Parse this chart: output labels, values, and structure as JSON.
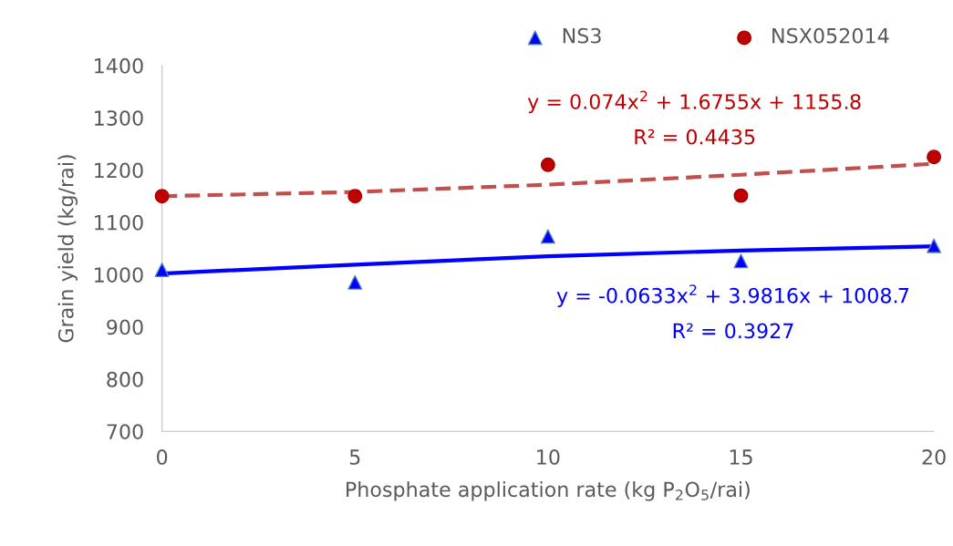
{
  "chart_data": {
    "type": "scatter",
    "xlabel": "Phosphate application rate (kg P$_{2}$O$_{5}$/rai)",
    "ylabel": "Grain yield (kg/rai)",
    "x": [
      0,
      5,
      10,
      15,
      20
    ],
    "series": [
      {
        "name": "NS3",
        "color": "#0000ff",
        "marker": "triangle",
        "values": [
          1009,
          985,
          1073,
          1026,
          1055
        ]
      },
      {
        "name": "NSX052014",
        "color": "#c00000",
        "marker": "circle",
        "values": [
          1150,
          1150,
          1210,
          1151,
          1225
        ]
      },
      {
        "type": "line",
        "color": "#0000ff",
        "line_style": "solid",
        "x": [
          0,
          5,
          10,
          15,
          20
        ],
        "values": [
          1002,
          1019,
          1035,
          1046,
          1054
        ]
      },
      {
        "type": "line",
        "color": "#c0504d",
        "line_style": "dashed",
        "x": [
          0,
          5,
          10,
          15,
          20
        ],
        "values": [
          1150,
          1158,
          1172,
          1191,
          1212
        ]
      }
    ],
    "annotations": [
      "y = 0.074x$^{2}$ + 1.6755x + 1155.8",
      "R² = 0.4435",
      "y = -0.0633x$^{2}$ + 3.9816x + 1008.7",
      "R² = 0.3927"
    ],
    "xlim": [
      0,
      20
    ],
    "xticks": [
      0,
      5,
      10,
      15,
      20
    ],
    "ylim": [
      700,
      1400
    ],
    "yticks": [
      700,
      800,
      900,
      1000,
      1100,
      1200,
      1300,
      1400
    ],
    "grid": false,
    "legend": "top"
  }
}
